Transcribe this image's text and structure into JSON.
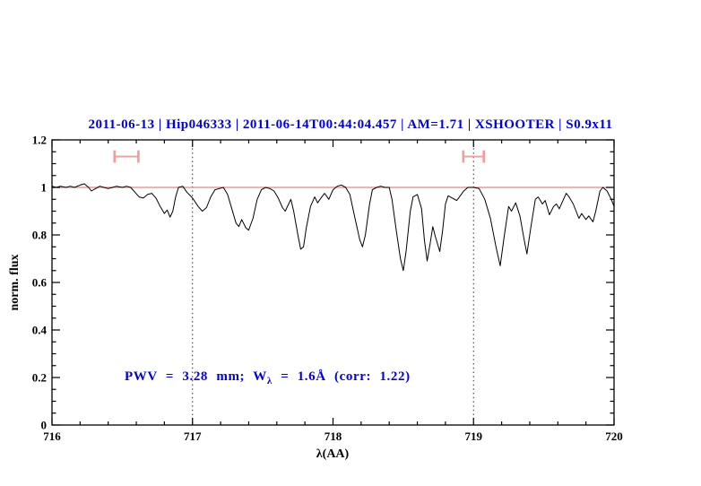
{
  "title": "2011-06-13 | Hip046333 | 2011-06-14T00:44:04.457 | AM=1.71 | XSHOOTER | S0.9x11",
  "annotation": {
    "pre": "PWV = 3.28 mm; W",
    "sub": "λ",
    "post": " = 1.6Å (corr: 1.22)"
  },
  "colors": {
    "title": "#0000dd",
    "annotation": "#0000dd",
    "spectrum": "#000000",
    "frame": "#000000",
    "reference_line": "#ef8181",
    "range_marker": "#f29c9c",
    "dotted_line": "#2a2a2a"
  },
  "chart_data": {
    "type": "line",
    "title": "2011-06-13 | Hip046333 | 2011-06-14T00:44:04.457 | AM=1.71 | XSHOOTER | S0.9x11",
    "xlabel": "λ(AA)",
    "ylabel": "norm. flux",
    "xlim": [
      716,
      720
    ],
    "ylim": [
      0,
      1.2
    ],
    "x_major_ticks": [
      716,
      717,
      718,
      719,
      720
    ],
    "x_tick_labels": [
      "716",
      "717",
      "718",
      "719",
      "720"
    ],
    "x_minor_step": 0.2,
    "y_major_ticks": [
      0,
      0.2,
      0.4,
      0.6,
      0.8,
      1,
      1.2
    ],
    "y_tick_labels": [
      "0",
      "0.2",
      "0.4",
      "0.6",
      "0.8",
      "1",
      "1.2"
    ],
    "y_minor_step": 0.05,
    "grid_x_dotted": [
      717,
      719
    ],
    "reference_line_y": 1.0,
    "legend": "none",
    "annotation": {
      "text": "PWV = 3.28 mm; Wλ = 1.6Å (corr: 1.22)",
      "x": 716.52,
      "y": 0.2
    },
    "range_markers": [
      {
        "x_center": 716.53,
        "x_half_width": 0.085,
        "y": 1.13,
        "y_half_height": 0.026
      },
      {
        "x_center": 719.0,
        "x_half_width": 0.073,
        "y": 1.13,
        "y_half_height": 0.026
      }
    ],
    "series": [
      {
        "name": "normalized flux spectrum",
        "color": "#000000",
        "points": [
          [
            716.0,
            1.005
          ],
          [
            716.03,
            1.0
          ],
          [
            716.06,
            1.005
          ],
          [
            716.1,
            1.0
          ],
          [
            716.13,
            1.005
          ],
          [
            716.16,
            1.0
          ],
          [
            716.2,
            1.01
          ],
          [
            716.23,
            1.015
          ],
          [
            716.26,
            1.0
          ],
          [
            716.28,
            0.985
          ],
          [
            716.31,
            0.995
          ],
          [
            716.34,
            1.005
          ],
          [
            716.37,
            1.0
          ],
          [
            716.4,
            0.995
          ],
          [
            716.43,
            1.0
          ],
          [
            716.46,
            1.005
          ],
          [
            716.5,
            1.0
          ],
          [
            716.53,
            1.005
          ],
          [
            716.56,
            1.0
          ],
          [
            716.59,
            0.98
          ],
          [
            716.62,
            0.96
          ],
          [
            716.65,
            0.955
          ],
          [
            716.68,
            0.97
          ],
          [
            716.71,
            0.975
          ],
          [
            716.74,
            0.955
          ],
          [
            716.77,
            0.92
          ],
          [
            716.8,
            0.89
          ],
          [
            716.82,
            0.905
          ],
          [
            716.84,
            0.875
          ],
          [
            716.86,
            0.9
          ],
          [
            716.88,
            0.96
          ],
          [
            716.9,
            1.0
          ],
          [
            716.93,
            1.005
          ],
          [
            716.96,
            0.98
          ],
          [
            717.0,
            0.955
          ],
          [
            717.04,
            0.92
          ],
          [
            717.07,
            0.9
          ],
          [
            717.1,
            0.915
          ],
          [
            717.13,
            0.96
          ],
          [
            717.16,
            0.99
          ],
          [
            717.19,
            0.995
          ],
          [
            717.22,
            1.0
          ],
          [
            717.25,
            0.97
          ],
          [
            717.28,
            0.91
          ],
          [
            717.31,
            0.85
          ],
          [
            717.33,
            0.835
          ],
          [
            717.35,
            0.865
          ],
          [
            717.38,
            0.83
          ],
          [
            717.4,
            0.82
          ],
          [
            717.43,
            0.87
          ],
          [
            717.46,
            0.95
          ],
          [
            717.49,
            0.99
          ],
          [
            717.52,
            1.0
          ],
          [
            717.55,
            0.995
          ],
          [
            717.58,
            0.985
          ],
          [
            717.61,
            0.955
          ],
          [
            717.64,
            0.915
          ],
          [
            717.66,
            0.9
          ],
          [
            717.68,
            0.925
          ],
          [
            717.7,
            0.95
          ],
          [
            717.72,
            0.9
          ],
          [
            717.75,
            0.8
          ],
          [
            717.77,
            0.74
          ],
          [
            717.79,
            0.75
          ],
          [
            717.81,
            0.83
          ],
          [
            717.84,
            0.92
          ],
          [
            717.87,
            0.96
          ],
          [
            717.89,
            0.935
          ],
          [
            717.92,
            0.96
          ],
          [
            717.94,
            0.975
          ],
          [
            717.97,
            0.95
          ],
          [
            718.0,
            0.99
          ],
          [
            718.03,
            1.005
          ],
          [
            718.06,
            1.01
          ],
          [
            718.09,
            1.0
          ],
          [
            718.12,
            0.97
          ],
          [
            718.16,
            0.86
          ],
          [
            718.19,
            0.78
          ],
          [
            718.21,
            0.75
          ],
          [
            718.23,
            0.8
          ],
          [
            718.26,
            0.93
          ],
          [
            718.28,
            0.99
          ],
          [
            718.31,
            1.0
          ],
          [
            718.34,
            1.005
          ],
          [
            718.37,
            1.0
          ],
          [
            718.4,
            1.0
          ],
          [
            718.42,
            0.95
          ],
          [
            718.45,
            0.82
          ],
          [
            718.48,
            0.7
          ],
          [
            718.5,
            0.65
          ],
          [
            718.52,
            0.73
          ],
          [
            718.55,
            0.9
          ],
          [
            718.57,
            0.96
          ],
          [
            718.6,
            0.97
          ],
          [
            718.63,
            0.91
          ],
          [
            718.65,
            0.78
          ],
          [
            718.67,
            0.69
          ],
          [
            718.69,
            0.76
          ],
          [
            718.71,
            0.835
          ],
          [
            718.73,
            0.79
          ],
          [
            718.76,
            0.73
          ],
          [
            718.78,
            0.82
          ],
          [
            718.8,
            0.93
          ],
          [
            718.82,
            0.965
          ],
          [
            718.85,
            0.955
          ],
          [
            718.88,
            0.945
          ],
          [
            718.9,
            0.96
          ],
          [
            718.93,
            0.985
          ],
          [
            718.96,
            1.0
          ],
          [
            719.0,
            1.0
          ],
          [
            719.04,
            0.995
          ],
          [
            719.08,
            0.95
          ],
          [
            719.12,
            0.87
          ],
          [
            719.16,
            0.75
          ],
          [
            719.19,
            0.67
          ],
          [
            719.22,
            0.8
          ],
          [
            719.25,
            0.92
          ],
          [
            719.27,
            0.9
          ],
          [
            719.3,
            0.935
          ],
          [
            719.33,
            0.88
          ],
          [
            719.36,
            0.78
          ],
          [
            719.38,
            0.72
          ],
          [
            719.41,
            0.84
          ],
          [
            719.44,
            0.95
          ],
          [
            719.46,
            0.96
          ],
          [
            719.49,
            0.93
          ],
          [
            719.51,
            0.945
          ],
          [
            719.54,
            0.885
          ],
          [
            719.57,
            0.92
          ],
          [
            719.59,
            0.93
          ],
          [
            719.61,
            0.91
          ],
          [
            719.64,
            0.95
          ],
          [
            719.66,
            0.975
          ],
          [
            719.68,
            0.96
          ],
          [
            719.71,
            0.93
          ],
          [
            719.75,
            0.87
          ],
          [
            719.77,
            0.89
          ],
          [
            719.8,
            0.865
          ],
          [
            719.82,
            0.88
          ],
          [
            719.85,
            0.855
          ],
          [
            719.87,
            0.9
          ],
          [
            719.9,
            0.985
          ],
          [
            719.92,
            1.0
          ],
          [
            719.95,
            0.985
          ],
          [
            719.98,
            0.95
          ],
          [
            720.0,
            0.92
          ]
        ]
      }
    ]
  }
}
